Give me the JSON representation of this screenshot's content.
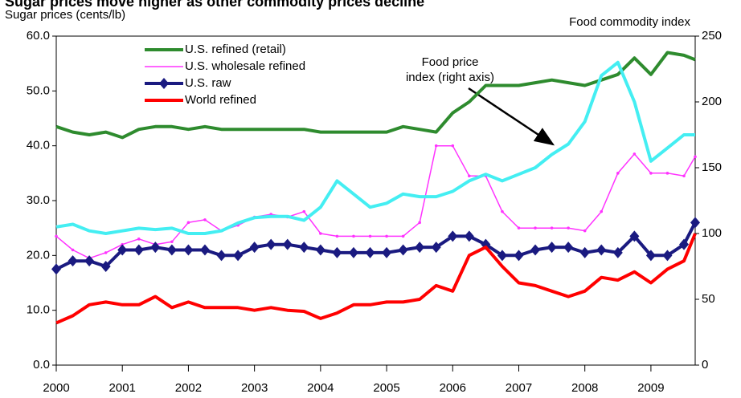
{
  "chart_data": {
    "type": "line",
    "title": "Sugar prices move higher as other commodity prices decline",
    "y_label": "Sugar prices (cents/lb)",
    "y2_label": "Food commodity index",
    "annotation": [
      "Food price",
      "index (right axis)"
    ],
    "x": [
      2000,
      2000.25,
      2000.5,
      2000.75,
      2001,
      2001.25,
      2001.5,
      2001.75,
      2002,
      2002.25,
      2002.5,
      2002.75,
      2003,
      2003.25,
      2003.5,
      2003.75,
      2004,
      2004.25,
      2004.5,
      2004.75,
      2005,
      2005.25,
      2005.5,
      2005.75,
      2006,
      2006.25,
      2006.5,
      2006.75,
      2007,
      2007.25,
      2007.5,
      2007.75,
      2008,
      2008.25,
      2008.5,
      2008.75,
      2009,
      2009.25,
      2009.5,
      2009.67
    ],
    "xlim": [
      2000,
      2009.67
    ],
    "xticks": [
      2000,
      2001,
      2002,
      2003,
      2004,
      2005,
      2006,
      2007,
      2008,
      2009
    ],
    "ylim": [
      0,
      60
    ],
    "yticks": [
      {
        "value": 0,
        "label": "0.0"
      },
      {
        "value": 10,
        "label": "10.0"
      },
      {
        "value": 20,
        "label": "20.0"
      },
      {
        "value": 30,
        "label": "30.0"
      },
      {
        "value": 40,
        "label": "40.0"
      },
      {
        "value": 50,
        "label": "50.0"
      },
      {
        "value": 60,
        "label": "60.0"
      }
    ],
    "y2lim": [
      0,
      250
    ],
    "y2ticks": [
      0,
      50,
      100,
      150,
      200,
      250
    ],
    "series": [
      {
        "name": "U.S. refined (retail)",
        "color": "#2e8b2e",
        "marker": "none",
        "values": [
          43.5,
          42.5,
          42,
          42.5,
          41.5,
          43,
          43.5,
          43.5,
          43,
          43.5,
          43,
          43,
          43,
          43,
          43,
          43,
          42.5,
          42.5,
          42.5,
          42.5,
          42.5,
          43.5,
          43,
          42.5,
          46,
          48,
          51,
          51,
          51,
          51.5,
          52,
          51.5,
          51,
          52,
          53,
          56,
          53,
          57,
          56.5,
          55.7
        ]
      },
      {
        "name": "U.S. wholesale refined",
        "color": "#ff33ff",
        "marker": "dot",
        "values": [
          23.5,
          21,
          19.5,
          20.5,
          22,
          23,
          22,
          22.5,
          26,
          26.5,
          24.5,
          25.5,
          27,
          27.5,
          27,
          28,
          24,
          23.5,
          23.5,
          23.5,
          23.5,
          23.5,
          26,
          40,
          40,
          34.5,
          34.5,
          28,
          25,
          25,
          25,
          25,
          24.5,
          28,
          35,
          38.5,
          35,
          35,
          34.5,
          38
        ]
      },
      {
        "name": "U.S. raw",
        "color": "#1a1a80",
        "marker": "diamond",
        "values": [
          17.5,
          19,
          19,
          18,
          21,
          21,
          21.5,
          21,
          21,
          21,
          20,
          20,
          21.5,
          22,
          22,
          21.5,
          21,
          20.5,
          20.5,
          20.5,
          20.5,
          21,
          21.5,
          21.5,
          23.5,
          23.5,
          22,
          20,
          20,
          21,
          21.5,
          21.5,
          20.5,
          21,
          20.5,
          23.5,
          20,
          20,
          22,
          26
        ]
      },
      {
        "name": "World refined",
        "color": "#ff0000",
        "marker": "none",
        "values": [
          7.7,
          9,
          11,
          11.5,
          11,
          11,
          12.5,
          10.5,
          11.5,
          10.5,
          10.5,
          10.5,
          10,
          10.5,
          10,
          9.8,
          8.5,
          9.5,
          11,
          11,
          11.5,
          11.5,
          12,
          14.5,
          13.5,
          20,
          21.5,
          18,
          15,
          14.5,
          13.5,
          12.5,
          13.5,
          16,
          15.5,
          17,
          15,
          17.5,
          19,
          24
        ]
      },
      {
        "color": "#44eef2",
        "marker": "none",
        "axis": "y2",
        "values": [
          105,
          107,
          102,
          100,
          102,
          104,
          103,
          104,
          100,
          100,
          102,
          108,
          112,
          113,
          113,
          110,
          120,
          140,
          130,
          120,
          123,
          130,
          128,
          128,
          132,
          140,
          145,
          140,
          145,
          150,
          160,
          168,
          185,
          220,
          230,
          200,
          155,
          165,
          175,
          175
        ]
      }
    ]
  }
}
